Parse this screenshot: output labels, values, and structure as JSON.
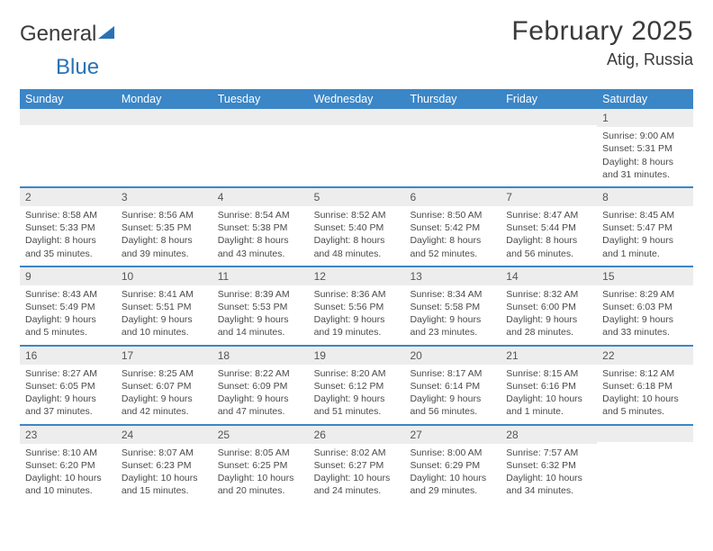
{
  "brand": {
    "part1": "General",
    "part2": "Blue"
  },
  "title": "February 2025",
  "location": "Atig, Russia",
  "colors": {
    "header_bg": "#3b86c7",
    "header_text": "#ffffff",
    "daynum_bg": "#ededed",
    "border": "#3b86c7",
    "body_text": "#4a4a4a"
  },
  "weekdays": [
    "Sunday",
    "Monday",
    "Tuesday",
    "Wednesday",
    "Thursday",
    "Friday",
    "Saturday"
  ],
  "weeks": [
    [
      {
        "n": "",
        "lines": []
      },
      {
        "n": "",
        "lines": []
      },
      {
        "n": "",
        "lines": []
      },
      {
        "n": "",
        "lines": []
      },
      {
        "n": "",
        "lines": []
      },
      {
        "n": "",
        "lines": []
      },
      {
        "n": "1",
        "lines": [
          "Sunrise: 9:00 AM",
          "Sunset: 5:31 PM",
          "Daylight: 8 hours and 31 minutes."
        ]
      }
    ],
    [
      {
        "n": "2",
        "lines": [
          "Sunrise: 8:58 AM",
          "Sunset: 5:33 PM",
          "Daylight: 8 hours and 35 minutes."
        ]
      },
      {
        "n": "3",
        "lines": [
          "Sunrise: 8:56 AM",
          "Sunset: 5:35 PM",
          "Daylight: 8 hours and 39 minutes."
        ]
      },
      {
        "n": "4",
        "lines": [
          "Sunrise: 8:54 AM",
          "Sunset: 5:38 PM",
          "Daylight: 8 hours and 43 minutes."
        ]
      },
      {
        "n": "5",
        "lines": [
          "Sunrise: 8:52 AM",
          "Sunset: 5:40 PM",
          "Daylight: 8 hours and 48 minutes."
        ]
      },
      {
        "n": "6",
        "lines": [
          "Sunrise: 8:50 AM",
          "Sunset: 5:42 PM",
          "Daylight: 8 hours and 52 minutes."
        ]
      },
      {
        "n": "7",
        "lines": [
          "Sunrise: 8:47 AM",
          "Sunset: 5:44 PM",
          "Daylight: 8 hours and 56 minutes."
        ]
      },
      {
        "n": "8",
        "lines": [
          "Sunrise: 8:45 AM",
          "Sunset: 5:47 PM",
          "Daylight: 9 hours and 1 minute."
        ]
      }
    ],
    [
      {
        "n": "9",
        "lines": [
          "Sunrise: 8:43 AM",
          "Sunset: 5:49 PM",
          "Daylight: 9 hours and 5 minutes."
        ]
      },
      {
        "n": "10",
        "lines": [
          "Sunrise: 8:41 AM",
          "Sunset: 5:51 PM",
          "Daylight: 9 hours and 10 minutes."
        ]
      },
      {
        "n": "11",
        "lines": [
          "Sunrise: 8:39 AM",
          "Sunset: 5:53 PM",
          "Daylight: 9 hours and 14 minutes."
        ]
      },
      {
        "n": "12",
        "lines": [
          "Sunrise: 8:36 AM",
          "Sunset: 5:56 PM",
          "Daylight: 9 hours and 19 minutes."
        ]
      },
      {
        "n": "13",
        "lines": [
          "Sunrise: 8:34 AM",
          "Sunset: 5:58 PM",
          "Daylight: 9 hours and 23 minutes."
        ]
      },
      {
        "n": "14",
        "lines": [
          "Sunrise: 8:32 AM",
          "Sunset: 6:00 PM",
          "Daylight: 9 hours and 28 minutes."
        ]
      },
      {
        "n": "15",
        "lines": [
          "Sunrise: 8:29 AM",
          "Sunset: 6:03 PM",
          "Daylight: 9 hours and 33 minutes."
        ]
      }
    ],
    [
      {
        "n": "16",
        "lines": [
          "Sunrise: 8:27 AM",
          "Sunset: 6:05 PM",
          "Daylight: 9 hours and 37 minutes."
        ]
      },
      {
        "n": "17",
        "lines": [
          "Sunrise: 8:25 AM",
          "Sunset: 6:07 PM",
          "Daylight: 9 hours and 42 minutes."
        ]
      },
      {
        "n": "18",
        "lines": [
          "Sunrise: 8:22 AM",
          "Sunset: 6:09 PM",
          "Daylight: 9 hours and 47 minutes."
        ]
      },
      {
        "n": "19",
        "lines": [
          "Sunrise: 8:20 AM",
          "Sunset: 6:12 PM",
          "Daylight: 9 hours and 51 minutes."
        ]
      },
      {
        "n": "20",
        "lines": [
          "Sunrise: 8:17 AM",
          "Sunset: 6:14 PM",
          "Daylight: 9 hours and 56 minutes."
        ]
      },
      {
        "n": "21",
        "lines": [
          "Sunrise: 8:15 AM",
          "Sunset: 6:16 PM",
          "Daylight: 10 hours and 1 minute."
        ]
      },
      {
        "n": "22",
        "lines": [
          "Sunrise: 8:12 AM",
          "Sunset: 6:18 PM",
          "Daylight: 10 hours and 5 minutes."
        ]
      }
    ],
    [
      {
        "n": "23",
        "lines": [
          "Sunrise: 8:10 AM",
          "Sunset: 6:20 PM",
          "Daylight: 10 hours and 10 minutes."
        ]
      },
      {
        "n": "24",
        "lines": [
          "Sunrise: 8:07 AM",
          "Sunset: 6:23 PM",
          "Daylight: 10 hours and 15 minutes."
        ]
      },
      {
        "n": "25",
        "lines": [
          "Sunrise: 8:05 AM",
          "Sunset: 6:25 PM",
          "Daylight: 10 hours and 20 minutes."
        ]
      },
      {
        "n": "26",
        "lines": [
          "Sunrise: 8:02 AM",
          "Sunset: 6:27 PM",
          "Daylight: 10 hours and 24 minutes."
        ]
      },
      {
        "n": "27",
        "lines": [
          "Sunrise: 8:00 AM",
          "Sunset: 6:29 PM",
          "Daylight: 10 hours and 29 minutes."
        ]
      },
      {
        "n": "28",
        "lines": [
          "Sunrise: 7:57 AM",
          "Sunset: 6:32 PM",
          "Daylight: 10 hours and 34 minutes."
        ]
      },
      {
        "n": "",
        "lines": []
      }
    ]
  ]
}
